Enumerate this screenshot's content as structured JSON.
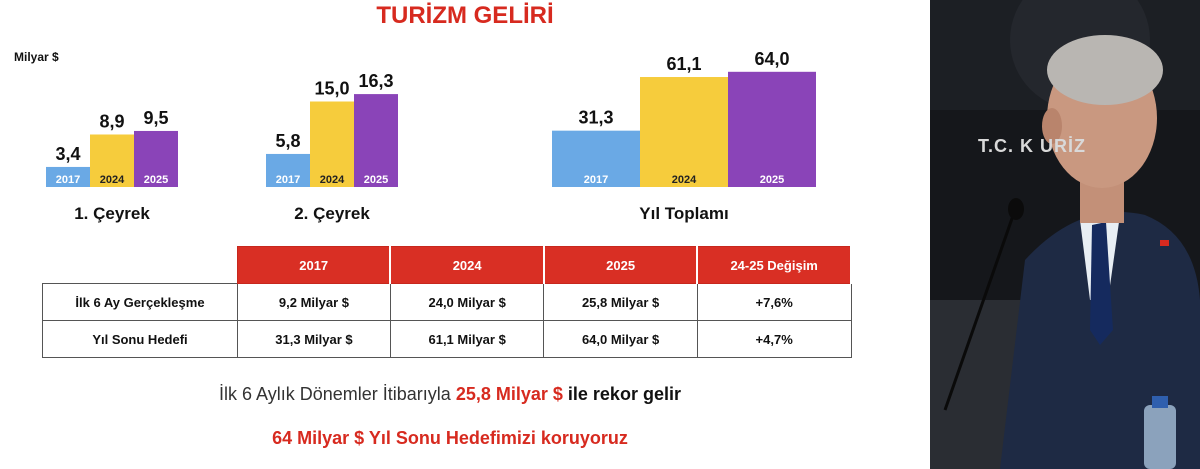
{
  "slide": {
    "title": "TURİZM GELİRİ",
    "unit": "Milyar $",
    "group_labels": [
      "1. Çeyrek",
      "2. Çeyrek",
      "Yıl Toplamı"
    ]
  },
  "chart_data": {
    "type": "bar",
    "ylabel": "Milyar $",
    "series_colors": {
      "2017": "#6aa9e5",
      "2024": "#f6cc3c",
      "2025": "#8a44b8"
    },
    "groups": [
      {
        "label": "1. Çeyrek",
        "categories": [
          "2017",
          "2024",
          "2025"
        ],
        "values": [
          3.4,
          8.9,
          9.5
        ],
        "value_labels": [
          "3,4",
          "8,9",
          "9,5"
        ]
      },
      {
        "label": "2. Çeyrek",
        "categories": [
          "2017",
          "2024",
          "2025"
        ],
        "values": [
          5.8,
          15.0,
          16.3
        ],
        "value_labels": [
          "5,8",
          "15,0",
          "16,3"
        ]
      },
      {
        "label": "Yıl Toplamı",
        "categories": [
          "2017",
          "2024",
          "2025"
        ],
        "values": [
          31.3,
          61.1,
          64.0
        ],
        "value_labels": [
          "31,3",
          "61,1",
          "64,0"
        ]
      }
    ]
  },
  "table": {
    "headers": [
      "",
      "2017",
      "2024",
      "2025",
      "24-25 Değişim"
    ],
    "rows": [
      [
        "İlk 6 Ay Gerçekleşme",
        "9,2 Milyar $",
        "24,0 Milyar $",
        "25,8 Milyar $",
        "+7,6%"
      ],
      [
        "Yıl Sonu Hedefi",
        "31,3 Milyar $",
        "61,1 Milyar $",
        "64,0 Milyar $",
        "+4,7%"
      ]
    ]
  },
  "footer": {
    "line1_pre": "İlk 6 Aylık Dönemler İtibarıyla",
    "line1_highlight": "25,8 Milyar $",
    "line1_post": "ile rekor gelir",
    "line2": "64 Milyar $ Yıl Sonu Hedefimizi koruyoruz"
  },
  "video": {
    "backdrop_text": "T.C. K         URİZ"
  }
}
